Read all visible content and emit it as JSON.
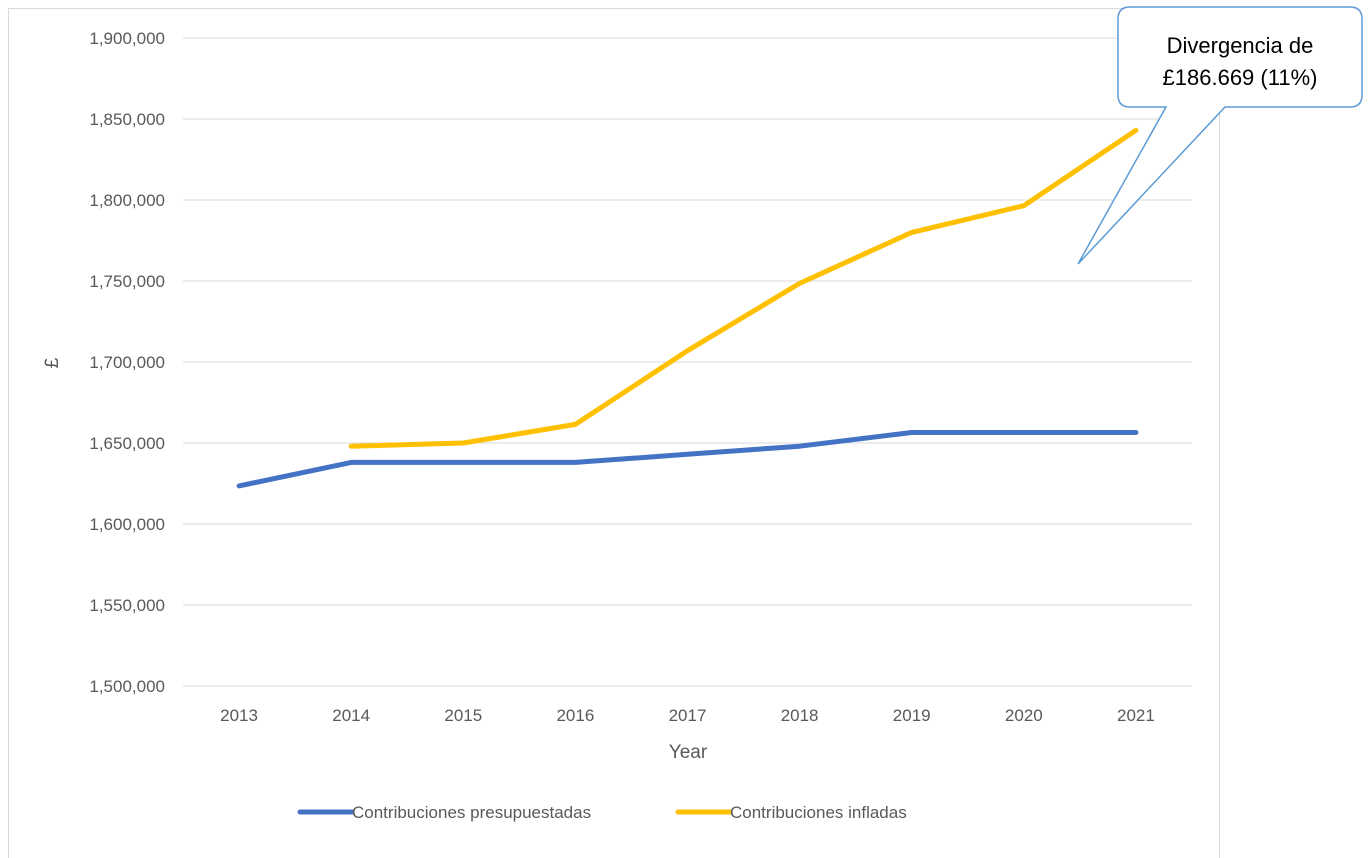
{
  "chart_data": {
    "type": "line",
    "title": "",
    "xlabel": "Year",
    "ylabel": "£",
    "categories": [
      "2013",
      "2014",
      "2015",
      "2016",
      "2017",
      "2018",
      "2019",
      "2020",
      "2021"
    ],
    "yticks": [
      "1,500,000",
      "1,550,000",
      "1,600,000",
      "1,650,000",
      "1,700,000",
      "1,750,000",
      "1,800,000",
      "1,850,000",
      "1,900,000"
    ],
    "ylim": [
      1500000,
      1900000
    ],
    "grid": true,
    "legend_position": "bottom",
    "series": [
      {
        "name": "Contribuciones presupuestadas",
        "color": "#4472c4",
        "values": [
          1623500,
          1638000,
          1638000,
          1638000,
          1643000,
          1648000,
          1656500,
          1656500,
          1656500
        ]
      },
      {
        "name": "Contribuciones infladas",
        "color": "#ffc000",
        "values": [
          null,
          1648000,
          1650000,
          1661500,
          1707000,
          1748500,
          1780000,
          1796500,
          1843000
        ]
      }
    ],
    "annotation": {
      "line1": "Divergencia de",
      "line2": "£186.669 (11%)"
    }
  }
}
